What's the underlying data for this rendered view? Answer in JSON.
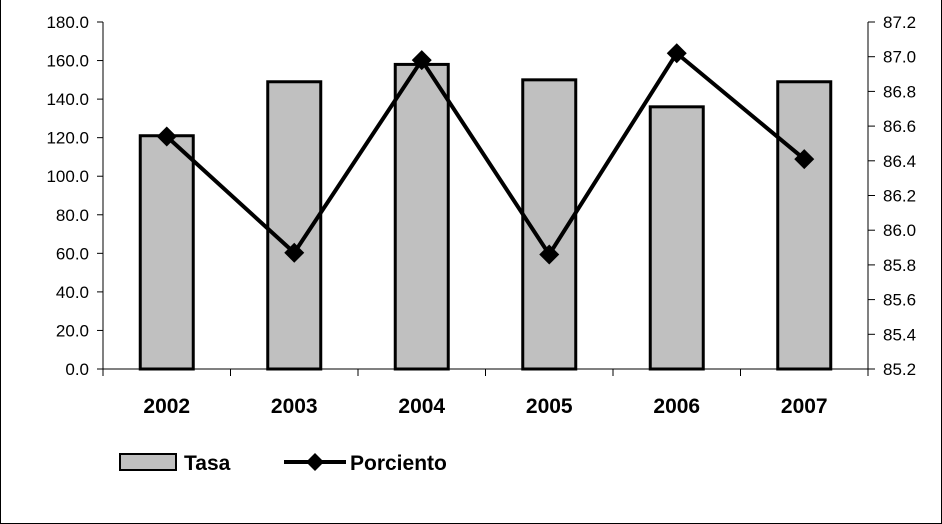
{
  "chart_data": {
    "type": "bar",
    "categories": [
      "2002",
      "2003",
      "2004",
      "2005",
      "2006",
      "2007"
    ],
    "series": [
      {
        "name": "Tasa",
        "type": "bar",
        "axis": "left",
        "values": [
          121,
          149,
          158,
          150,
          136,
          149
        ],
        "color": "#c0c0c0"
      },
      {
        "name": "Porciento",
        "type": "line",
        "axis": "right",
        "marker": "diamond",
        "values": [
          86.54,
          85.87,
          86.98,
          85.86,
          87.02,
          86.41
        ],
        "color": "#000000"
      }
    ],
    "y_left": {
      "ylim": [
        0,
        180
      ],
      "ticks": [
        "0.0",
        "20.0",
        "40.0",
        "60.0",
        "80.0",
        "100.0",
        "120.0",
        "140.0",
        "160.0",
        "180.0"
      ]
    },
    "y_right": {
      "ylim": [
        85.2,
        87.2
      ],
      "ticks": [
        "85.2",
        "85.4",
        "85.6",
        "85.8",
        "86.0",
        "86.2",
        "86.4",
        "86.6",
        "86.8",
        "87.0",
        "87.2"
      ]
    },
    "legend": {
      "position": "bottom-left",
      "entries": [
        "Tasa",
        "Porciento"
      ]
    },
    "grid": false
  }
}
